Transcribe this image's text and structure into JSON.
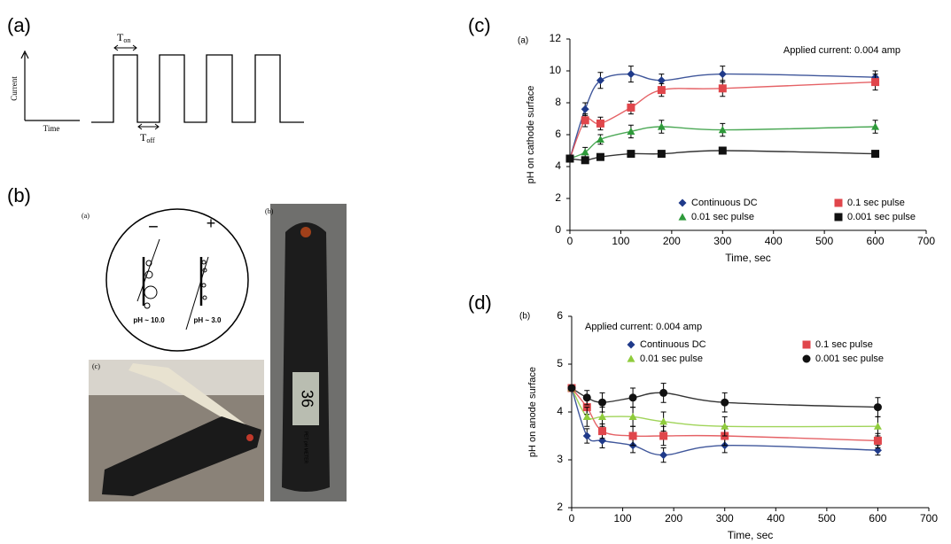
{
  "pulse_diagram": {
    "label": "(a)",
    "y_label": "Current",
    "x_label": "Time",
    "t_on": {
      "main": "T",
      "sub": "on"
    },
    "t_off": {
      "main": "T",
      "sub": "off"
    }
  },
  "photo_panel": {
    "label": "(b)",
    "sub_labels": [
      "(a)",
      "(b)",
      "(c)"
    ],
    "minus": "−",
    "plus": "+",
    "ph_left": "pH ~ 10.0",
    "ph_right": "pH ~ 3.0",
    "meter_display": "36",
    "meter_text": "PET pH METER"
  },
  "chart_data": [
    {
      "type": "line",
      "panel_label": "(c)",
      "tag": "(a)",
      "annotation": "Applied current: 0.004 amp",
      "x_label": "Time, sec",
      "y_label": "pH on cathode surface",
      "x": [
        0,
        30,
        60,
        120,
        180,
        300,
        600
      ],
      "xlim": [
        0,
        700
      ],
      "xticks": [
        0,
        100,
        200,
        300,
        400,
        500,
        600,
        700
      ],
      "ylim": [
        0,
        12
      ],
      "yticks": [
        0,
        2,
        4,
        6,
        8,
        10,
        12
      ],
      "legend": "lower center",
      "series": [
        {
          "name": "Continuous DC",
          "color": "#1f3a8a",
          "marker": "diamond",
          "values": [
            4.5,
            7.6,
            9.4,
            9.8,
            9.4,
            9.8,
            9.6
          ],
          "errors": [
            0.2,
            0.4,
            0.5,
            0.5,
            0.4,
            0.5,
            0.4
          ]
        },
        {
          "name": "0.1 sec pulse",
          "color": "#e0464b",
          "marker": "square",
          "values": [
            4.5,
            6.9,
            6.7,
            7.7,
            8.8,
            8.9,
            9.3
          ],
          "errors": [
            0.2,
            0.4,
            0.4,
            0.4,
            0.4,
            0.5,
            0.5
          ]
        },
        {
          "name": "0.01 sec pulse",
          "color": "#2e9a3a",
          "marker": "triangle",
          "values": [
            4.5,
            4.9,
            5.7,
            6.2,
            6.5,
            6.3,
            6.5
          ],
          "errors": [
            0.2,
            0.3,
            0.3,
            0.4,
            0.4,
            0.4,
            0.4
          ]
        },
        {
          "name": "0.001 sec pulse",
          "color": "#111111",
          "marker": "square",
          "values": [
            4.5,
            4.4,
            4.6,
            4.8,
            4.8,
            5.0,
            4.8
          ],
          "errors": [
            0.2,
            0.2,
            0.2,
            0.2,
            0.2,
            0.2,
            0.2
          ]
        }
      ]
    },
    {
      "type": "line",
      "panel_label": "(d)",
      "tag": "(b)",
      "annotation": "Applied current: 0.004 amp",
      "x_label": "Time, sec",
      "y_label": "pH on anode surface",
      "x": [
        0,
        30,
        60,
        120,
        180,
        300,
        600
      ],
      "xlim": [
        0,
        700
      ],
      "xticks": [
        0,
        100,
        200,
        300,
        400,
        500,
        600,
        700
      ],
      "ylim": [
        2,
        6
      ],
      "yticks": [
        2,
        3,
        4,
        5,
        6
      ],
      "legend": "upper center",
      "series": [
        {
          "name": "Continuous DC",
          "color": "#1f3a8a",
          "marker": "diamond",
          "values": [
            4.5,
            3.5,
            3.4,
            3.3,
            3.1,
            3.3,
            3.2
          ],
          "errors": [
            0.05,
            0.15,
            0.15,
            0.15,
            0.15,
            0.15,
            0.1
          ]
        },
        {
          "name": "0.1 sec pulse",
          "color": "#e0464b",
          "marker": "square",
          "values": [
            4.5,
            4.1,
            3.6,
            3.5,
            3.5,
            3.5,
            3.4
          ],
          "errors": [
            0.05,
            0.15,
            0.15,
            0.2,
            0.2,
            0.2,
            0.15
          ]
        },
        {
          "name": "0.01 sec pulse",
          "color": "#8fcc3c",
          "marker": "triangle",
          "values": [
            4.5,
            3.9,
            3.9,
            3.9,
            3.8,
            3.7,
            3.7
          ],
          "errors": [
            0.05,
            0.2,
            0.2,
            0.2,
            0.2,
            0.2,
            0.2
          ]
        },
        {
          "name": "0.001 sec pulse",
          "color": "#111111",
          "marker": "circle",
          "values": [
            4.5,
            4.3,
            4.2,
            4.3,
            4.4,
            4.2,
            4.1
          ],
          "errors": [
            0.05,
            0.15,
            0.2,
            0.2,
            0.2,
            0.2,
            0.2
          ]
        }
      ]
    }
  ]
}
